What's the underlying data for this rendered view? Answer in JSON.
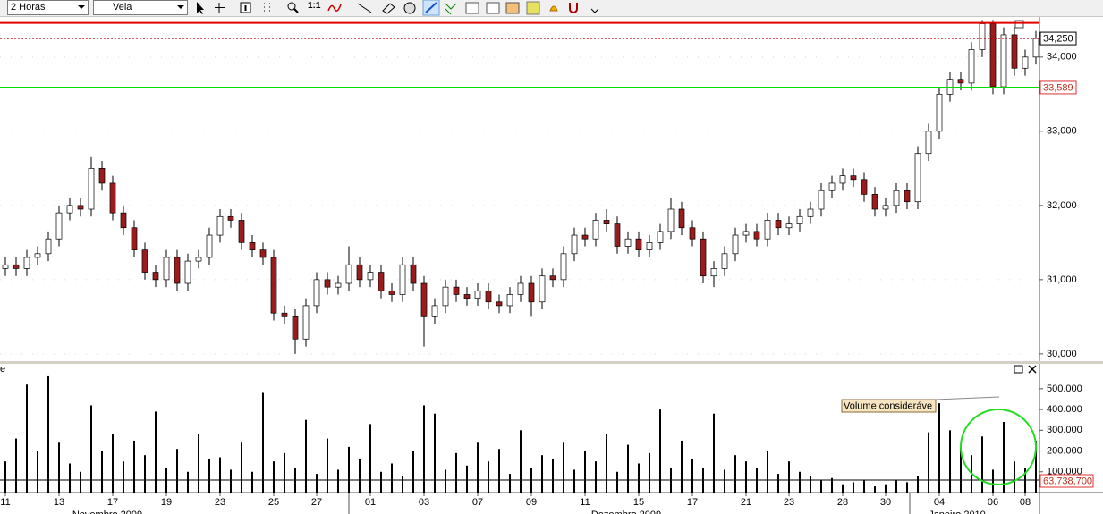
{
  "toolbar": {
    "interval": "2 Horas",
    "chart_style": "Vela",
    "zoom_button": "1:1"
  },
  "chart_data": [
    {
      "type": "candlestick",
      "categories": [
        "11",
        null,
        null,
        null,
        null,
        "13",
        null,
        null,
        null,
        null,
        "17",
        null,
        null,
        null,
        null,
        "19",
        null,
        null,
        null,
        null,
        "23",
        null,
        null,
        null,
        null,
        "25",
        null,
        null,
        null,
        "27",
        null,
        null,
        null,
        null,
        "01",
        null,
        null,
        null,
        null,
        "03",
        null,
        null,
        null,
        null,
        "07",
        null,
        null,
        null,
        null,
        "09",
        null,
        null,
        null,
        null,
        "11",
        null,
        null,
        null,
        null,
        "15",
        null,
        null,
        null,
        null,
        "17",
        null,
        null,
        null,
        null,
        "21",
        null,
        null,
        null,
        "23",
        null,
        null,
        null,
        null,
        "28",
        null,
        null,
        null,
        "30",
        null,
        null,
        null,
        null,
        "04",
        null,
        null,
        null,
        null,
        "06",
        null,
        null,
        "08",
        null
      ],
      "open": [
        31150,
        31200,
        31150,
        31300,
        31350,
        31550,
        31900,
        32000,
        31950,
        32500,
        32300,
        31900,
        31700,
        31400,
        31100,
        31000,
        31300,
        30950,
        31250,
        31300,
        31600,
        31850,
        31800,
        31500,
        31400,
        31300,
        30550,
        30500,
        30200,
        30650,
        31000,
        30900,
        30950,
        31200,
        31000,
        31100,
        30850,
        30800,
        31200,
        30950,
        30500,
        30650,
        30900,
        30800,
        30750,
        30850,
        30700,
        30650,
        30800,
        30950,
        30700,
        31050,
        31000,
        31350,
        31600,
        31550,
        31800,
        31750,
        31450,
        31550,
        31400,
        31500,
        31650,
        31950,
        31700,
        31550,
        31050,
        31150,
        31350,
        31600,
        31650,
        31550,
        31800,
        31700,
        31750,
        31850,
        31950,
        32200,
        32300,
        32400,
        32350,
        32150,
        31950,
        32000,
        32200,
        32050,
        32700,
        33000,
        33500,
        33700,
        33650,
        34100,
        34450,
        33600,
        34300,
        33850,
        34000
      ],
      "high": [
        31300,
        31300,
        31400,
        31450,
        31650,
        32000,
        32100,
        32100,
        32650,
        32600,
        32400,
        32000,
        31800,
        31500,
        31200,
        31400,
        31400,
        31350,
        31400,
        31700,
        31950,
        31950,
        31900,
        31600,
        31500,
        31400,
        30650,
        30600,
        30750,
        31100,
        31100,
        31050,
        31450,
        31300,
        31200,
        31200,
        30950,
        31300,
        31300,
        31050,
        30750,
        31000,
        31000,
        30900,
        30950,
        30950,
        30800,
        30900,
        31050,
        31050,
        31150,
        31150,
        31450,
        31700,
        31700,
        31900,
        31950,
        31850,
        31650,
        31650,
        31600,
        31750,
        32100,
        32050,
        31800,
        31650,
        31250,
        31450,
        31700,
        31750,
        31750,
        31900,
        31900,
        31850,
        31950,
        32050,
        32300,
        32400,
        32500,
        32500,
        32450,
        32250,
        32100,
        32300,
        32300,
        32800,
        33100,
        33600,
        33800,
        33800,
        34200,
        34500,
        34500,
        34400,
        34400,
        34100,
        34350
      ],
      "low": [
        31050,
        31050,
        31050,
        31200,
        31250,
        31450,
        31800,
        31850,
        31850,
        32200,
        31800,
        31600,
        31300,
        31000,
        30900,
        30900,
        30850,
        30850,
        31150,
        31200,
        31500,
        31700,
        31400,
        31300,
        31200,
        30450,
        30400,
        30000,
        30100,
        30550,
        30800,
        30800,
        30850,
        30900,
        30900,
        30750,
        30700,
        30700,
        30850,
        30100,
        30400,
        30550,
        30700,
        30650,
        30650,
        30600,
        30550,
        30550,
        30700,
        30500,
        30600,
        30900,
        30900,
        31250,
        31450,
        31450,
        31650,
        31350,
        31350,
        31300,
        31300,
        31400,
        31550,
        31600,
        31450,
        30950,
        30900,
        31050,
        31250,
        31500,
        31450,
        31450,
        31600,
        31600,
        31650,
        31750,
        31850,
        32100,
        32200,
        32250,
        32050,
        31850,
        31850,
        31900,
        31950,
        31950,
        32600,
        32900,
        33400,
        33550,
        33550,
        34000,
        33500,
        33500,
        33750,
        33750,
        33900
      ],
      "close": [
        31200,
        31150,
        31300,
        31350,
        31550,
        31900,
        32000,
        31950,
        32500,
        32300,
        31900,
        31700,
        31400,
        31100,
        31000,
        31300,
        30950,
        31250,
        31300,
        31600,
        31850,
        31800,
        31500,
        31400,
        31300,
        30550,
        30500,
        30200,
        30650,
        31000,
        30900,
        30950,
        31200,
        31000,
        31100,
        30850,
        30800,
        31200,
        30950,
        30500,
        30650,
        30900,
        30800,
        30750,
        30850,
        30700,
        30650,
        30800,
        30950,
        30700,
        31050,
        31000,
        31350,
        31600,
        31550,
        31800,
        31750,
        31450,
        31550,
        31400,
        31500,
        31650,
        31950,
        31700,
        31550,
        31050,
        31150,
        31350,
        31600,
        31650,
        31550,
        31800,
        31700,
        31750,
        31850,
        31950,
        32200,
        32300,
        32400,
        32350,
        32150,
        31950,
        32000,
        32200,
        32050,
        32700,
        33000,
        33500,
        33700,
        33650,
        34100,
        34450,
        33600,
        34300,
        33850,
        34000,
        34250
      ],
      "up_color": "#ffffff",
      "down_color": "#9b1c1c",
      "ylim": [
        29890,
        34540
      ],
      "yticks": [
        {
          "value": 30000,
          "label": "30,000"
        },
        {
          "value": 31000,
          "label": "31,000"
        },
        {
          "value": 32000,
          "label": "32,000"
        },
        {
          "value": 33000,
          "label": "33,000"
        },
        {
          "value": 34000,
          "label": "34,000"
        }
      ],
      "grid": true,
      "lines": [
        {
          "value": 34460,
          "color": "#e00000",
          "style": "solid"
        },
        {
          "value": 34250,
          "label": "34,250",
          "color": "#c00000",
          "style": "dotted"
        },
        {
          "value": 33589,
          "label": "33,589",
          "color": "#00dd00",
          "style": "solid"
        }
      ],
      "months": [
        "Novembro 2009",
        "Dezembro 2009",
        "Janeiro 2010"
      ]
    },
    {
      "type": "bar",
      "title": "e",
      "values": [
        150000,
        260000,
        520000,
        200000,
        560000,
        240000,
        140000,
        100000,
        420000,
        200000,
        280000,
        150000,
        250000,
        180000,
        390000,
        120000,
        210000,
        100000,
        280000,
        160000,
        170000,
        110000,
        240000,
        100000,
        480000,
        150000,
        190000,
        120000,
        350000,
        90000,
        260000,
        110000,
        220000,
        160000,
        330000,
        100000,
        140000,
        80000,
        200000,
        420000,
        380000,
        110000,
        190000,
        130000,
        240000,
        150000,
        210000,
        90000,
        300000,
        120000,
        180000,
        160000,
        240000,
        110000,
        200000,
        150000,
        280000,
        100000,
        230000,
        140000,
        190000,
        400000,
        120000,
        250000,
        160000,
        120000,
        380000,
        110000,
        180000,
        150000,
        120000,
        200000,
        90000,
        150000,
        100000,
        80000,
        60000,
        70000,
        40000,
        50000,
        60000,
        30000,
        40000,
        60000,
        50000,
        80000,
        290000,
        430000,
        300000,
        220000,
        180000,
        270000,
        110000,
        340000,
        150000,
        120000,
        250000
      ],
      "color": "#000000",
      "ylim": [
        0,
        620000
      ],
      "yticks": [
        {
          "value": 100000,
          "label": "100.000"
        },
        {
          "value": 200000,
          "label": "200.000"
        },
        {
          "value": 300000,
          "label": "300.000"
        },
        {
          "value": 400000,
          "label": "400.000"
        },
        {
          "value": 500000,
          "label": "500.000"
        }
      ],
      "annotation": "Volume consideráve",
      "reference_label": "63,738,700"
    }
  ]
}
